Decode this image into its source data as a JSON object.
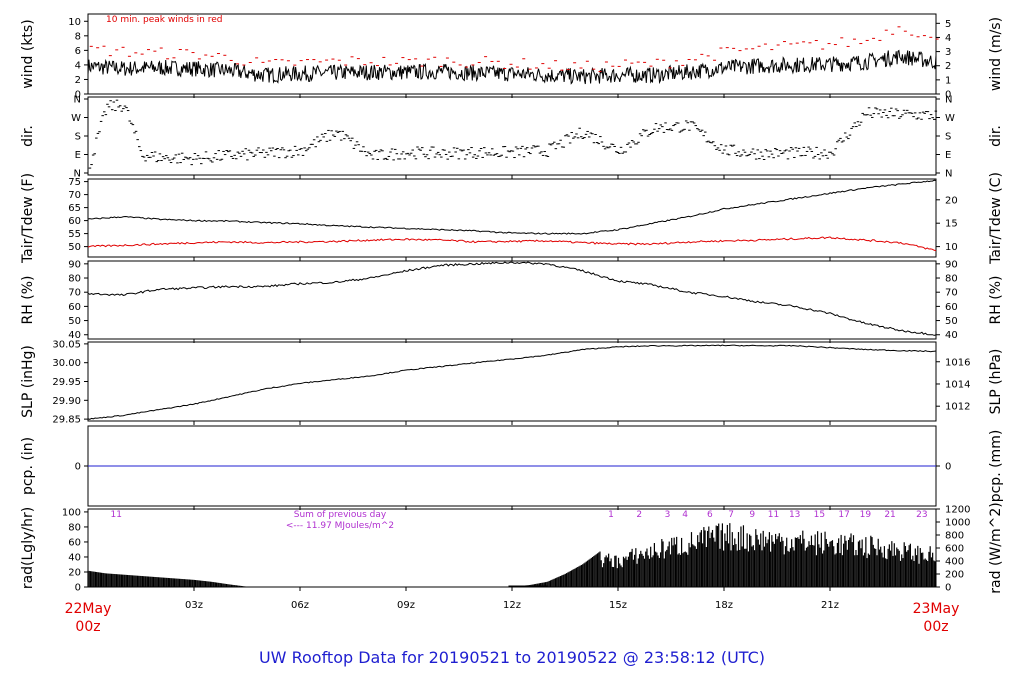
{
  "footer": {
    "title": "UW Rooftop Data for 20190521  to  20190522 @ 23:58:12  (UTC)"
  },
  "colors": {
    "axis": "#000000",
    "primary": "#000000",
    "secondary": "#e00000",
    "precip": "#1f1fd0",
    "annotation": "#b030d0",
    "date": "#e00000",
    "title": "#1f1fd0"
  },
  "x_axis": {
    "ticks": [
      "03z",
      "06z",
      "09z",
      "12z",
      "15z",
      "18z",
      "21z"
    ],
    "tick_hours": [
      3,
      6,
      9,
      12,
      15,
      18,
      21
    ],
    "start_label": [
      "22May",
      "00z"
    ],
    "end_label": [
      "23May",
      "00z"
    ]
  },
  "chart_data": [
    {
      "type": "line",
      "ylabel_left": "wind (kts)",
      "ylabel_right": "wind (m/s)",
      "ylim": [
        0,
        11
      ],
      "left_ticks": [
        0,
        2,
        4,
        6,
        8,
        10
      ],
      "right_ticks": [
        0,
        1,
        2,
        3,
        4,
        5
      ],
      "annotation": "10 min. peak winds in red",
      "x": [
        0,
        1,
        2,
        3,
        4,
        5,
        6,
        7,
        8,
        9,
        10,
        11,
        12,
        13,
        14,
        15,
        16,
        17,
        18,
        19,
        20,
        21,
        22,
        23,
        24
      ],
      "series": [
        {
          "values": [
            3.8,
            3.5,
            3.6,
            3.5,
            3.2,
            2.6,
            2.8,
            2.9,
            3.0,
            3.0,
            3.1,
            2.9,
            2.8,
            2.6,
            2.4,
            2.6,
            2.6,
            3.0,
            3.6,
            3.9,
            4.0,
            4.1,
            4.4,
            5.2,
            4.4
          ]
        },
        {
          "values": [
            6.2,
            5.8,
            5.6,
            5.5,
            5.0,
            4.0,
            4.3,
            4.5,
            4.5,
            4.4,
            4.6,
            4.4,
            4.2,
            3.9,
            3.7,
            4.0,
            4.1,
            4.8,
            5.7,
            6.3,
            6.6,
            6.9,
            7.3,
            9.5,
            7.0
          ]
        }
      ]
    },
    {
      "type": "scatter",
      "ylabel_left": "dir.",
      "ylabel_right": "dir.",
      "left_ticks": [
        "N",
        "E",
        "S",
        "W",
        "N"
      ],
      "right_ticks": [
        "N",
        "E",
        "S",
        "W",
        "N"
      ],
      "ylim": [
        0,
        360
      ],
      "x": [
        0,
        0.5,
        1,
        1.5,
        2,
        3,
        4,
        5,
        6,
        7,
        8,
        9,
        10,
        11,
        12,
        13,
        14,
        15,
        16,
        17,
        18,
        19,
        20,
        21,
        22,
        23,
        24
      ],
      "values": [
        30,
        320,
        330,
        90,
        75,
        70,
        85,
        95,
        110,
        200,
        80,
        100,
        95,
        100,
        100,
        110,
        200,
        110,
        220,
        230,
        110,
        95,
        95,
        100,
        290,
        285,
        280
      ]
    },
    {
      "type": "line",
      "ylabel_left": "Tair/Tdew (F)",
      "ylabel_right": "Tair/Tdew (C)",
      "ylim": [
        46,
        76
      ],
      "left_ticks": [
        50,
        55,
        60,
        65,
        70,
        75
      ],
      "right_ticks": [
        10,
        15,
        20
      ],
      "x": [
        0,
        1,
        2,
        3,
        4,
        5,
        6,
        7,
        8,
        9,
        10,
        11,
        12,
        13,
        14,
        15,
        16,
        17,
        18,
        19,
        20,
        21,
        22,
        23,
        24
      ],
      "series": [
        {
          "values": [
            60.5,
            61.5,
            60.5,
            60.0,
            59.8,
            59.2,
            58.8,
            58.0,
            57.5,
            57.0,
            56.5,
            56.0,
            55.2,
            55.0,
            55.0,
            56.5,
            59.0,
            61.5,
            64.5,
            66.5,
            68.5,
            70.5,
            72.5,
            74.0,
            75.5
          ]
        },
        {
          "values": [
            50.0,
            50.5,
            51.0,
            51.5,
            51.8,
            51.5,
            51.8,
            52.0,
            52.5,
            52.8,
            52.5,
            51.8,
            52.0,
            52.2,
            51.5,
            51.0,
            51.0,
            51.8,
            52.2,
            52.5,
            53.0,
            53.5,
            52.5,
            51.5,
            48.5
          ]
        }
      ]
    },
    {
      "type": "line",
      "ylabel_left": "RH (%)",
      "ylabel_right": "RH (%)",
      "ylim": [
        37,
        92
      ],
      "left_ticks": [
        40,
        50,
        60,
        70,
        80,
        90
      ],
      "right_ticks": [
        40,
        50,
        60,
        70,
        80,
        90
      ],
      "x": [
        0,
        1,
        2,
        3,
        4,
        5,
        6,
        7,
        8,
        9,
        10,
        11,
        12,
        13,
        14,
        15,
        16,
        17,
        18,
        19,
        20,
        21,
        22,
        23,
        24
      ],
      "series": [
        {
          "values": [
            69,
            68,
            72,
            73,
            74,
            74,
            76,
            77,
            80,
            85,
            89,
            90,
            91,
            90,
            85,
            78,
            75,
            70,
            67,
            63,
            60,
            55,
            48,
            43,
            40
          ]
        }
      ]
    },
    {
      "type": "line",
      "ylabel_left": "SLP (inHg)",
      "ylabel_right": "SLP (hPa)",
      "ylim": [
        29.845,
        30.055
      ],
      "left_ticks": [
        "29.85",
        "29.90",
        "29.95",
        "30.00",
        "30.05"
      ],
      "right_ticks": [
        1012,
        1014,
        1016
      ],
      "x": [
        0,
        1,
        2,
        3,
        4,
        5,
        6,
        7,
        8,
        9,
        10,
        11,
        12,
        13,
        14,
        15,
        16,
        17,
        18,
        19,
        20,
        21,
        22,
        23,
        24
      ],
      "series": [
        {
          "values": [
            29.85,
            29.86,
            29.875,
            29.89,
            29.91,
            29.93,
            29.945,
            29.955,
            29.965,
            29.98,
            29.99,
            30.0,
            30.01,
            30.02,
            30.035,
            30.042,
            30.045,
            30.045,
            30.046,
            30.045,
            30.045,
            30.04,
            30.035,
            30.032,
            30.03
          ]
        }
      ]
    },
    {
      "type": "line",
      "ylabel_left": "pcp. (in)",
      "ylabel_right": "pcp. (mm)",
      "ylim": [
        -1,
        1
      ],
      "left_ticks": [
        0
      ],
      "right_ticks": [
        0
      ],
      "x": [
        0,
        24
      ],
      "series": [
        {
          "values": [
            0,
            0
          ]
        }
      ]
    },
    {
      "type": "bar",
      "ylabel_left": "rad(Lgly/hr)",
      "ylabel_right": "rad (W/m^2)",
      "ylim": [
        0,
        1200
      ],
      "left_ticks": [
        0,
        20,
        40,
        60,
        80,
        100
      ],
      "right_ticks": [
        0,
        200,
        400,
        600,
        800,
        1000,
        1200
      ],
      "hour_labels": [
        "11",
        "1",
        "2",
        "3",
        "4",
        "6",
        "7",
        "9",
        "11",
        "13",
        "15",
        "17",
        "19",
        "21",
        "23"
      ],
      "hour_label_x": [
        0.8,
        14.8,
        15.6,
        16.4,
        16.9,
        17.6,
        18.2,
        18.8,
        19.4,
        20.0,
        20.7,
        21.4,
        22.0,
        22.7,
        23.6
      ],
      "annotation_lines": [
        "Sum of previous day",
        "<--- 11.97 MJoules/m^2"
      ],
      "x": [
        0,
        0.5,
        1,
        1.5,
        2,
        2.5,
        3,
        3.5,
        4,
        4.5,
        11.9,
        12.5,
        13,
        13.5,
        14,
        14.5,
        15,
        15.5,
        16,
        16.5,
        17,
        17.5,
        18,
        18.5,
        19,
        19.5,
        20,
        20.5,
        21,
        21.5,
        22,
        22.5,
        23,
        23.5,
        24
      ],
      "values": [
        250,
        210,
        190,
        170,
        150,
        130,
        110,
        80,
        40,
        5,
        0,
        30,
        80,
        200,
        350,
        550,
        500,
        620,
        700,
        800,
        850,
        950,
        1000,
        980,
        950,
        920,
        900,
        880,
        860,
        830,
        800,
        780,
        720,
        650,
        620
      ]
    }
  ]
}
